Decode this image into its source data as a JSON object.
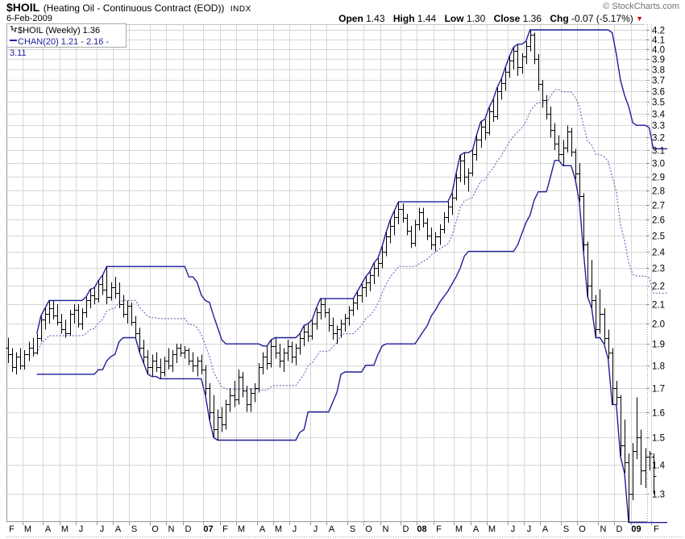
{
  "header": {
    "symbol": "$HOIL",
    "name": "(Heating Oil - Continuous Contract (EOD))",
    "exchange": "INDX",
    "date": "6-Feb-2009",
    "copyright": "© StockCharts.com",
    "quote": {
      "open_label": "Open",
      "open": "1.43",
      "high_label": "High",
      "high": "1.44",
      "low_label": "Low",
      "low": "1.30",
      "close_label": "Close",
      "close": "1.36",
      "chg_label": "Chg",
      "chg": "-0.07 (-5.17%)",
      "direction": "down"
    }
  },
  "legend": {
    "series": "$HOIL (Weekly) 1.36",
    "overlay": "CHAN(20) 1.21 - 2.16 - 3.11"
  },
  "colors": {
    "bar": "#000000",
    "channel": "#1e1e9c",
    "channel_mid": "#7070c0",
    "grid": "#d6d6d6",
    "frame": "#999999",
    "axis_text": "#000000",
    "background": "#ffffff",
    "chg_triangle": "#cc0000"
  },
  "chart_data": {
    "type": "ohlc-bar",
    "timeframe": "weekly",
    "title": "$HOIL Heating Oil Continuous Contract weekly bars with CHAN(20) price channel",
    "start_date": "2006-02-03",
    "y_axis": {
      "scale": "log",
      "min": 1.214,
      "max": 4.26,
      "tick_labels": [
        "1.3",
        "1.4",
        "1.5",
        "1.6",
        "1.7",
        "1.8",
        "1.9",
        "2.0",
        "2.1",
        "2.2",
        "2.3",
        "2.4",
        "2.5",
        "2.6",
        "2.7",
        "2.8",
        "2.9",
        "3.0",
        "3.1",
        "3.2",
        "3.3",
        "3.4",
        "3.5",
        "3.6",
        "3.7",
        "3.8",
        "3.9",
        "4.0",
        "4.1",
        "4.2"
      ]
    },
    "x_axis": {
      "month_labels": [
        "F",
        "M",
        "A",
        "M",
        "J",
        "J",
        "A",
        "S",
        "O",
        "N",
        "D",
        "07",
        "F",
        "M",
        "A",
        "M",
        "J",
        "J",
        "A",
        "S",
        "O",
        "N",
        "D",
        "08",
        "F",
        "M",
        "A",
        "M",
        "J",
        "J",
        "A",
        "S",
        "O",
        "N",
        "D",
        "09",
        "F"
      ]
    },
    "overlay": {
      "name": "CHAN(20)",
      "window": 20,
      "last_values": [
        1.21,
        2.16,
        3.11
      ]
    },
    "bars": [
      [
        1.88,
        1.93,
        1.81,
        1.85
      ],
      [
        1.85,
        1.88,
        1.77,
        1.79
      ],
      [
        1.79,
        1.86,
        1.76,
        1.84
      ],
      [
        1.84,
        1.88,
        1.78,
        1.8
      ],
      [
        1.8,
        1.87,
        1.78,
        1.85
      ],
      [
        1.85,
        1.91,
        1.82,
        1.88
      ],
      [
        1.88,
        1.93,
        1.84,
        1.86
      ],
      [
        1.86,
        1.95,
        1.85,
        1.93
      ],
      [
        1.93,
        2.04,
        1.91,
        2.02
      ],
      [
        2.02,
        2.08,
        1.97,
        2.05
      ],
      [
        2.05,
        2.12,
        2.0,
        2.08
      ],
      [
        2.08,
        2.12,
        2.02,
        2.04
      ],
      [
        2.04,
        2.1,
        1.99,
        2.01
      ],
      [
        2.01,
        2.05,
        1.95,
        1.97
      ],
      [
        1.97,
        2.02,
        1.93,
        1.95
      ],
      [
        1.95,
        2.07,
        1.94,
        2.05
      ],
      [
        2.05,
        2.1,
        2.0,
        2.07
      ],
      [
        2.07,
        2.1,
        1.98,
        2.0
      ],
      [
        2.0,
        2.08,
        1.97,
        2.06
      ],
      [
        2.06,
        2.14,
        2.03,
        2.12
      ],
      [
        2.12,
        2.18,
        2.08,
        2.15
      ],
      [
        2.15,
        2.19,
        2.1,
        2.13
      ],
      [
        2.13,
        2.23,
        2.11,
        2.21
      ],
      [
        2.21,
        2.26,
        2.15,
        2.18
      ],
      [
        2.18,
        2.31,
        2.1,
        2.14
      ],
      [
        2.14,
        2.22,
        2.12,
        2.19
      ],
      [
        2.19,
        2.25,
        2.13,
        2.16
      ],
      [
        2.16,
        2.22,
        2.08,
        2.1
      ],
      [
        2.1,
        2.15,
        2.03,
        2.05
      ],
      [
        2.05,
        2.12,
        2.0,
        2.09
      ],
      [
        2.09,
        2.11,
        1.99,
        2.01
      ],
      [
        2.01,
        2.04,
        1.93,
        1.95
      ],
      [
        1.95,
        1.98,
        1.86,
        1.88
      ],
      [
        1.88,
        1.92,
        1.81,
        1.84
      ],
      [
        1.84,
        1.87,
        1.76,
        1.79
      ],
      [
        1.79,
        1.85,
        1.75,
        1.82
      ],
      [
        1.82,
        1.86,
        1.77,
        1.79
      ],
      [
        1.79,
        1.83,
        1.74,
        1.77
      ],
      [
        1.77,
        1.84,
        1.75,
        1.82
      ],
      [
        1.82,
        1.88,
        1.78,
        1.8
      ],
      [
        1.8,
        1.87,
        1.77,
        1.85
      ],
      [
        1.85,
        1.9,
        1.81,
        1.88
      ],
      [
        1.88,
        1.9,
        1.84,
        1.86
      ],
      [
        1.86,
        1.89,
        1.83,
        1.87
      ],
      [
        1.87,
        1.88,
        1.8,
        1.82
      ],
      [
        1.82,
        1.86,
        1.77,
        1.8
      ],
      [
        1.8,
        1.84,
        1.75,
        1.82
      ],
      [
        1.82,
        1.85,
        1.76,
        1.78
      ],
      [
        1.78,
        1.8,
        1.67,
        1.7
      ],
      [
        1.7,
        1.72,
        1.57,
        1.6
      ],
      [
        1.6,
        1.67,
        1.5,
        1.53
      ],
      [
        1.53,
        1.61,
        1.49,
        1.58
      ],
      [
        1.58,
        1.62,
        1.52,
        1.55
      ],
      [
        1.55,
        1.65,
        1.53,
        1.63
      ],
      [
        1.63,
        1.7,
        1.6,
        1.67
      ],
      [
        1.67,
        1.73,
        1.62,
        1.65
      ],
      [
        1.65,
        1.78,
        1.63,
        1.75
      ],
      [
        1.75,
        1.77,
        1.66,
        1.69
      ],
      [
        1.69,
        1.71,
        1.6,
        1.63
      ],
      [
        1.63,
        1.7,
        1.6,
        1.68
      ],
      [
        1.68,
        1.72,
        1.64,
        1.7
      ],
      [
        1.7,
        1.81,
        1.68,
        1.79
      ],
      [
        1.79,
        1.86,
        1.76,
        1.84
      ],
      [
        1.84,
        1.89,
        1.78,
        1.81
      ],
      [
        1.81,
        1.92,
        1.79,
        1.89
      ],
      [
        1.89,
        1.93,
        1.83,
        1.86
      ],
      [
        1.86,
        1.9,
        1.79,
        1.82
      ],
      [
        1.82,
        1.88,
        1.77,
        1.86
      ],
      [
        1.86,
        1.92,
        1.82,
        1.89
      ],
      [
        1.89,
        1.91,
        1.81,
        1.84
      ],
      [
        1.84,
        1.9,
        1.8,
        1.88
      ],
      [
        1.88,
        1.95,
        1.85,
        1.93
      ],
      [
        1.93,
        1.99,
        1.89,
        1.96
      ],
      [
        1.96,
        2.0,
        1.91,
        1.94
      ],
      [
        1.94,
        2.02,
        1.92,
        2.0
      ],
      [
        2.0,
        2.08,
        1.97,
        2.06
      ],
      [
        2.06,
        2.13,
        2.02,
        2.1
      ],
      [
        2.1,
        2.13,
        2.03,
        2.06
      ],
      [
        2.06,
        2.08,
        1.96,
        1.99
      ],
      [
        1.99,
        2.03,
        1.92,
        1.95
      ],
      [
        1.95,
        1.99,
        1.9,
        1.97
      ],
      [
        1.97,
        2.02,
        1.93,
        2.0
      ],
      [
        2.0,
        2.05,
        1.96,
        2.03
      ],
      [
        2.03,
        2.09,
        1.99,
        2.07
      ],
      [
        2.07,
        2.13,
        2.04,
        2.11
      ],
      [
        2.11,
        2.17,
        2.07,
        2.15
      ],
      [
        2.15,
        2.21,
        2.11,
        2.19
      ],
      [
        2.19,
        2.25,
        2.14,
        2.22
      ],
      [
        2.22,
        2.28,
        2.17,
        2.26
      ],
      [
        2.26,
        2.33,
        2.21,
        2.3
      ],
      [
        2.3,
        2.36,
        2.25,
        2.33
      ],
      [
        2.33,
        2.43,
        2.3,
        2.4
      ],
      [
        2.4,
        2.52,
        2.37,
        2.49
      ],
      [
        2.49,
        2.6,
        2.45,
        2.56
      ],
      [
        2.56,
        2.66,
        2.5,
        2.62
      ],
      [
        2.62,
        2.72,
        2.57,
        2.67
      ],
      [
        2.67,
        2.71,
        2.58,
        2.61
      ],
      [
        2.61,
        2.64,
        2.5,
        2.53
      ],
      [
        2.53,
        2.56,
        2.42,
        2.45
      ],
      [
        2.45,
        2.6,
        2.43,
        2.57
      ],
      [
        2.57,
        2.68,
        2.53,
        2.65
      ],
      [
        2.65,
        2.68,
        2.55,
        2.58
      ],
      [
        2.58,
        2.61,
        2.47,
        2.5
      ],
      [
        2.5,
        2.55,
        2.41,
        2.44
      ],
      [
        2.44,
        2.52,
        2.4,
        2.49
      ],
      [
        2.49,
        2.57,
        2.44,
        2.54
      ],
      [
        2.54,
        2.65,
        2.51,
        2.62
      ],
      [
        2.62,
        2.72,
        2.58,
        2.69
      ],
      [
        2.69,
        2.78,
        2.63,
        2.75
      ],
      [
        2.75,
        2.92,
        2.73,
        2.89
      ],
      [
        2.89,
        3.06,
        2.86,
        3.02
      ],
      [
        3.02,
        3.08,
        2.84,
        2.9
      ],
      [
        2.9,
        2.96,
        2.79,
        2.93
      ],
      [
        2.93,
        3.1,
        2.9,
        3.07
      ],
      [
        3.07,
        3.22,
        3.02,
        3.18
      ],
      [
        3.18,
        3.33,
        3.12,
        3.29
      ],
      [
        3.29,
        3.35,
        3.18,
        3.24
      ],
      [
        3.24,
        3.45,
        3.22,
        3.42
      ],
      [
        3.42,
        3.52,
        3.33,
        3.38
      ],
      [
        3.38,
        3.63,
        3.35,
        3.6
      ],
      [
        3.6,
        3.71,
        3.52,
        3.67
      ],
      [
        3.67,
        3.82,
        3.6,
        3.78
      ],
      [
        3.78,
        3.93,
        3.72,
        3.89
      ],
      [
        3.89,
        4.02,
        3.8,
        3.98
      ],
      [
        3.98,
        4.05,
        3.74,
        3.82
      ],
      [
        3.82,
        3.96,
        3.76,
        3.93
      ],
      [
        3.93,
        4.08,
        3.85,
        4.03
      ],
      [
        4.03,
        4.2,
        3.98,
        4.15
      ],
      [
        4.15,
        4.17,
        3.85,
        3.9
      ],
      [
        3.9,
        3.95,
        3.6,
        3.66
      ],
      [
        3.66,
        3.7,
        3.45,
        3.52
      ],
      [
        3.52,
        3.56,
        3.35,
        3.4
      ],
      [
        3.4,
        3.46,
        3.2,
        3.26
      ],
      [
        3.26,
        3.32,
        3.1,
        3.15
      ],
      [
        3.15,
        3.22,
        3.02,
        3.07
      ],
      [
        3.07,
        3.18,
        2.98,
        3.12
      ],
      [
        3.12,
        3.3,
        3.08,
        3.25
      ],
      [
        3.25,
        3.28,
        3.05,
        3.09
      ],
      [
        3.09,
        3.11,
        2.88,
        2.92
      ],
      [
        2.92,
        3.0,
        2.72,
        2.76
      ],
      [
        2.76,
        2.78,
        2.4,
        2.44
      ],
      [
        2.44,
        2.46,
        2.14,
        2.2
      ],
      [
        2.2,
        2.35,
        2.08,
        2.12
      ],
      [
        2.12,
        2.15,
        1.93,
        1.97
      ],
      [
        1.97,
        2.18,
        1.95,
        2.05
      ],
      [
        2.05,
        2.08,
        1.9,
        1.93
      ],
      [
        1.93,
        1.97,
        1.83,
        1.86
      ],
      [
        1.86,
        1.88,
        1.63,
        1.7
      ],
      [
        1.7,
        1.73,
        1.63,
        1.66
      ],
      [
        1.66,
        1.67,
        1.43,
        1.47
      ],
      [
        1.47,
        1.57,
        1.37,
        1.41
      ],
      [
        1.41,
        1.44,
        1.21,
        1.3
      ],
      [
        1.3,
        1.48,
        1.28,
        1.45
      ],
      [
        1.45,
        1.66,
        1.42,
        1.5
      ],
      [
        1.5,
        1.53,
        1.33,
        1.38
      ],
      [
        1.38,
        1.46,
        1.32,
        1.43
      ],
      [
        1.43,
        1.45,
        1.38,
        1.44
      ],
      [
        1.43,
        1.44,
        1.3,
        1.36
      ]
    ]
  }
}
